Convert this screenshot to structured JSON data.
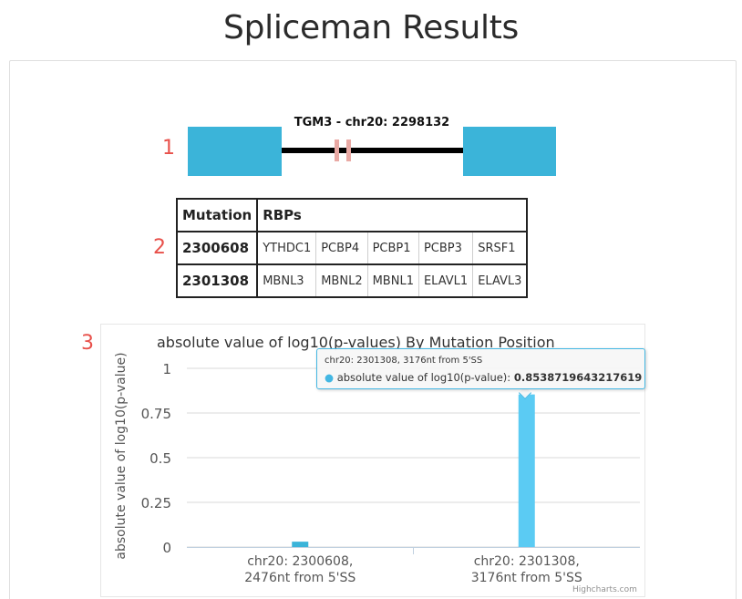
{
  "page": {
    "title": "Spliceman Results"
  },
  "markers": [
    "1",
    "2",
    "3"
  ],
  "gene": {
    "label": "TGM3 - chr20: 2298132",
    "colors": {
      "exon": "#3bb4d9",
      "mutation": "#e9a9a4"
    }
  },
  "table": {
    "headers": [
      "Mutation",
      "RBPs"
    ],
    "rows": [
      {
        "mutation": "2300608",
        "rbps": [
          "YTHDC1",
          "PCBP4",
          "PCBP1",
          "PCBP3",
          "SRSF1"
        ]
      },
      {
        "mutation": "2301308",
        "rbps": [
          "MBNL3",
          "MBNL2",
          "MBNL1",
          "ELAVL1",
          "ELAVL3"
        ]
      }
    ]
  },
  "tooltip": {
    "header": "chr20: 2301308, 3176nt from 5'SS",
    "series_label": "absolute value of log10(p-value):",
    "value": "0.8538719643217619"
  },
  "credits": "Highcharts.com",
  "chart_data": {
    "type": "bar",
    "title": "absolute value of log10(p-values) By Mutation Position",
    "ylabel": "absolute value of log10(p-value)",
    "xlabel": "",
    "ylim": [
      0,
      1
    ],
    "yticks": [
      "0",
      "0.25",
      "0.5",
      "0.75",
      "1"
    ],
    "categories": [
      [
        "chr20: 2300608,",
        "2476nt from 5'SS"
      ],
      [
        "chr20: 2301308,",
        "3176nt from 5'SS"
      ]
    ],
    "series": [
      {
        "name": "absolute value of log10(p-value)",
        "values": [
          0.03,
          0.8538719643217619
        ],
        "colors": [
          "#3bb4d9",
          "#5bcbf3"
        ]
      }
    ]
  }
}
